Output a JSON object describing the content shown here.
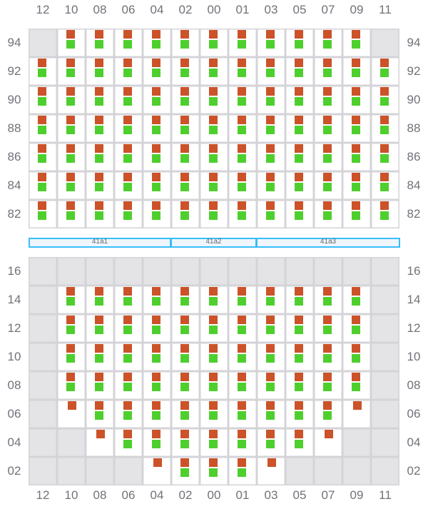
{
  "colors": {
    "occupied_top": "#cc5229",
    "occupied_bottom": "#4ecf2e",
    "unavailable": "#e4e4e7",
    "grid_line": "#d4d4d8",
    "band_border": "#38bdf8",
    "band_fill": "#eff6ff"
  },
  "legend_states": {
    "B": "red+green",
    "R": "red only",
    "G": "unavailable"
  },
  "columns": [
    "12",
    "10",
    "08",
    "06",
    "04",
    "02",
    "00",
    "01",
    "03",
    "05",
    "07",
    "09",
    "11"
  ],
  "top_section": {
    "rows": [
      {
        "label": "94",
        "cells": "GBBBBBBBBBBBG"
      },
      {
        "label": "92",
        "cells": "BBBBBBBBBBBBB"
      },
      {
        "label": "90",
        "cells": "BBBBBBBBBBBBB"
      },
      {
        "label": "88",
        "cells": "BBBBBBBBBBBBB"
      },
      {
        "label": "86",
        "cells": "BBBBBBBBBBBBB"
      },
      {
        "label": "84",
        "cells": "BBBBBBBBBBBBB"
      },
      {
        "label": "82",
        "cells": "BBBBBBBBBBBBB"
      }
    ]
  },
  "bands": [
    {
      "label": "41a1",
      "span_columns": 5
    },
    {
      "label": "41a2",
      "span_columns": 3
    },
    {
      "label": "41a3",
      "span_columns": 5
    }
  ],
  "bottom_section": {
    "rows": [
      {
        "label": "16",
        "cells": "GGGGGGGGGGGGG"
      },
      {
        "label": "14",
        "cells": "GBBBBBBBBBBBG"
      },
      {
        "label": "12",
        "cells": "GBBBBBBBBBBBG"
      },
      {
        "label": "10",
        "cells": "GBBBBBBBBBBBG"
      },
      {
        "label": "08",
        "cells": "GBBBBBBBBBBBG"
      },
      {
        "label": "06",
        "cells": "GRBBBBBBBBBRG"
      },
      {
        "label": "04",
        "cells": "GGRBBBBBBBRGG"
      },
      {
        "label": "02",
        "cells": "GGGGRBBBRGGGG"
      }
    ]
  }
}
